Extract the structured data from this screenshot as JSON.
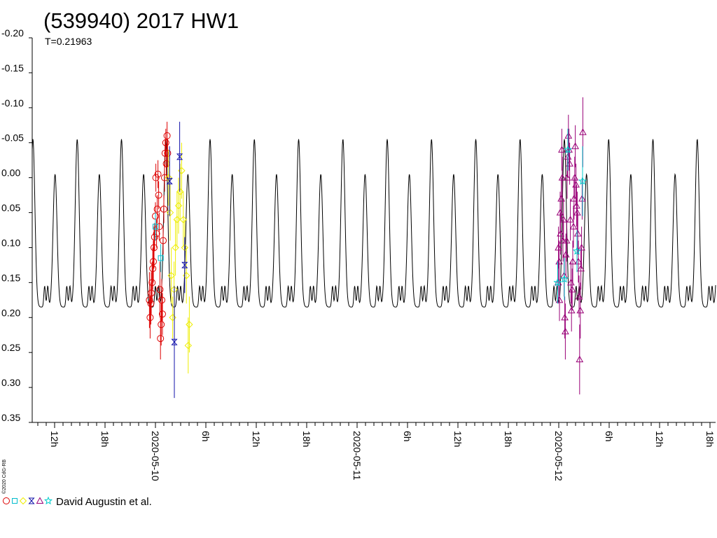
{
  "chart_data": {
    "type": "scatter",
    "title": "(539940) 2017 HW1",
    "subtitle": "T=0.21963",
    "copyright": "©2020 CdG-RB",
    "x_unit": "hours",
    "xlim": [
      "2020-05-09T09:20",
      "2020-05-12T18:40"
    ],
    "ylim": [
      -0.2,
      0.35
    ],
    "y_inverted": true,
    "y_ticks": [
      {
        "value": -0.2,
        "label": "-0.20"
      },
      {
        "value": -0.15,
        "label": "-0.15"
      },
      {
        "value": -0.1,
        "label": "-0.10"
      },
      {
        "value": -0.05,
        "label": "-0.05"
      },
      {
        "value": 0.0,
        "label": "0.00"
      },
      {
        "value": 0.05,
        "label": "0.05"
      },
      {
        "value": 0.1,
        "label": "0.10"
      },
      {
        "value": 0.15,
        "label": "0.15"
      },
      {
        "value": 0.2,
        "label": "0.20"
      },
      {
        "value": 0.25,
        "label": "0.25"
      },
      {
        "value": 0.3,
        "label": "0.30"
      },
      {
        "value": 0.35,
        "label": "0.35"
      }
    ],
    "x_tick_labels": [
      {
        "time": "2020-05-09T12:00",
        "label": "12h"
      },
      {
        "time": "2020-05-09T18:00",
        "label": "18h"
      },
      {
        "time": "2020-05-10T00:00",
        "label": "2020-05-10"
      },
      {
        "time": "2020-05-10T06:00",
        "label": "6h"
      },
      {
        "time": "2020-05-10T12:00",
        "label": "12h"
      },
      {
        "time": "2020-05-10T18:00",
        "label": "18h"
      },
      {
        "time": "2020-05-11T00:00",
        "label": "2020-05-11"
      },
      {
        "time": "2020-05-11T06:00",
        "label": "6h"
      },
      {
        "time": "2020-05-11T12:00",
        "label": "12h"
      },
      {
        "time": "2020-05-11T18:00",
        "label": "18h"
      },
      {
        "time": "2020-05-12T00:00",
        "label": "2020-05-12"
      },
      {
        "time": "2020-05-12T06:00",
        "label": "6h"
      },
      {
        "time": "2020-05-12T12:00",
        "label": "12h"
      },
      {
        "time": "2020-05-12T18:00",
        "label": "18h"
      }
    ],
    "model_curve": {
      "period_hours": 5.271,
      "reference_peak": "2020-05-09T09:25",
      "primary_max": -0.055,
      "secondary_max": -0.005,
      "minimum": 0.185,
      "inflection_level": 0.155,
      "color": "#000000"
    },
    "legend": {
      "symbols": [
        {
          "shape": "circle",
          "color": "#dd0000"
        },
        {
          "shape": "square",
          "color": "#00bbcc"
        },
        {
          "shape": "diamond",
          "color": "#eeee00"
        },
        {
          "shape": "bowtie",
          "color": "#1111aa"
        },
        {
          "shape": "triangle",
          "color": "#990077"
        },
        {
          "shape": "star",
          "color": "#00cccc"
        }
      ],
      "label": "David Augustin et al."
    },
    "series": [
      {
        "shape": "circle",
        "color": "#dd0000",
        "points": [
          [
            "2020-05-09T23:17",
            0.175,
            0.04
          ],
          [
            "2020-05-09T23:22",
            0.2,
            0.03
          ],
          [
            "2020-05-09T23:27",
            0.18,
            0.03
          ],
          [
            "2020-05-09T23:30",
            0.165,
            0.03
          ],
          [
            "2020-05-09T23:36",
            0.15,
            0.03
          ],
          [
            "2020-05-09T23:41",
            0.13,
            0.03
          ],
          [
            "2020-05-09T23:45",
            0.12,
            0.03
          ],
          [
            "2020-05-09T23:50",
            0.1,
            0.03
          ],
          [
            "2020-05-09T23:54",
            0.085,
            0.02
          ],
          [
            "2020-05-10T00:00",
            0.055,
            0.02
          ],
          [
            "2020-05-10T00:03",
            0.0,
            0.02
          ],
          [
            "2020-05-10T00:08",
            0.08,
            0.02
          ],
          [
            "2020-05-10T00:13",
            0.045,
            0.02
          ],
          [
            "2020-05-10T00:18",
            -0.005,
            0.02
          ],
          [
            "2020-05-10T00:23",
            0.025,
            0.02
          ],
          [
            "2020-05-10T00:27",
            0.07,
            0.02
          ],
          [
            "2020-05-10T00:32",
            0.16,
            0.04
          ],
          [
            "2020-05-10T00:36",
            0.23,
            0.03
          ],
          [
            "2020-05-10T00:41",
            0.21,
            0.03
          ],
          [
            "2020-05-10T00:45",
            0.175,
            0.03
          ],
          [
            "2020-05-10T00:50",
            0.195,
            0.03
          ],
          [
            "2020-05-10T00:55",
            0.09,
            0.02
          ],
          [
            "2020-05-10T01:00",
            0.045,
            0.02
          ],
          [
            "2020-05-10T01:05",
            0.0,
            0.02
          ],
          [
            "2020-05-10T01:09",
            -0.035,
            0.02
          ],
          [
            "2020-05-10T01:14",
            -0.05,
            0.02
          ],
          [
            "2020-05-10T01:18",
            -0.02,
            0.02
          ],
          [
            "2020-05-10T01:23",
            -0.06,
            0.02
          ],
          [
            "2020-05-10T01:27",
            -0.035,
            0.02
          ]
        ]
      },
      {
        "shape": "square",
        "color": "#00bbcc",
        "points": [
          [
            "2020-05-10T00:00",
            0.07,
            0.02
          ],
          [
            "2020-05-10T00:38",
            0.115,
            0.02
          ]
        ]
      },
      {
        "shape": "diamond",
        "color": "#eeee00",
        "points": [
          [
            "2020-05-10T01:34",
            0.0,
            0.04
          ],
          [
            "2020-05-10T01:45",
            0.05,
            0.04
          ],
          [
            "2020-05-10T01:53",
            0.14,
            0.04
          ],
          [
            "2020-05-10T02:03",
            0.2,
            0.03
          ],
          [
            "2020-05-10T02:13",
            0.16,
            0.04
          ],
          [
            "2020-05-10T02:23",
            0.1,
            0.04
          ],
          [
            "2020-05-10T02:34",
            0.06,
            0.04
          ],
          [
            "2020-05-10T02:45",
            0.04,
            0.04
          ],
          [
            "2020-05-10T02:56",
            0.02,
            0.04
          ],
          [
            "2020-05-10T03:07",
            -0.01,
            0.04
          ],
          [
            "2020-05-10T03:19",
            0.06,
            0.04
          ],
          [
            "2020-05-10T03:29",
            0.1,
            0.04
          ],
          [
            "2020-05-10T03:41",
            0.14,
            0.04
          ],
          [
            "2020-05-10T03:54",
            0.24,
            0.04
          ],
          [
            "2020-05-10T04:02",
            0.21,
            0.04
          ]
        ]
      },
      {
        "shape": "bowtie",
        "color": "#1111aa",
        "points": [
          [
            "2020-05-10T01:41",
            0.005,
            0.05
          ],
          [
            "2020-05-10T02:15",
            0.235,
            0.08
          ],
          [
            "2020-05-10T02:53",
            -0.03,
            0.05
          ],
          [
            "2020-05-10T03:29",
            0.125,
            0.04
          ]
        ]
      },
      {
        "shape": "triangle",
        "color": "#990077",
        "points": [
          [
            "2020-05-11T23:56",
            0.15,
            0.03
          ],
          [
            "2020-05-11T23:58",
            0.1,
            0.03
          ],
          [
            "2020-05-12T00:03",
            0.12,
            0.03
          ],
          [
            "2020-05-12T00:05",
            0.175,
            0.03
          ],
          [
            "2020-05-12T00:10",
            0.05,
            0.03
          ],
          [
            "2020-05-12T00:13",
            0.08,
            0.03
          ],
          [
            "2020-05-12T00:18",
            0.03,
            0.03
          ],
          [
            "2020-05-12T00:22",
            -0.04,
            0.03
          ],
          [
            "2020-05-12T00:25",
            0.0,
            0.03
          ],
          [
            "2020-05-12T00:30",
            0.09,
            0.03
          ],
          [
            "2020-05-12T00:34",
            0.06,
            0.03
          ],
          [
            "2020-05-12T00:38",
            0.14,
            0.03
          ],
          [
            "2020-05-12T00:43",
            0.2,
            0.03
          ],
          [
            "2020-05-12T00:47",
            0.22,
            0.04
          ],
          [
            "2020-05-12T00:51",
            0.11,
            0.03
          ],
          [
            "2020-05-12T00:56",
            0.09,
            0.03
          ],
          [
            "2020-05-12T01:00",
            0.0,
            0.03
          ],
          [
            "2020-05-12T01:05",
            -0.03,
            0.03
          ],
          [
            "2020-05-12T01:09",
            -0.06,
            0.03
          ],
          [
            "2020-05-12T01:13",
            -0.04,
            0.03
          ],
          [
            "2020-05-12T01:18",
            -0.02,
            0.03
          ],
          [
            "2020-05-12T01:23",
            0.06,
            0.03
          ],
          [
            "2020-05-12T01:27",
            0.15,
            0.03
          ],
          [
            "2020-05-12T01:31",
            0.19,
            0.03
          ],
          [
            "2020-05-12T01:36",
            0.16,
            0.03
          ],
          [
            "2020-05-12T01:40",
            0.12,
            0.03
          ],
          [
            "2020-05-12T01:45",
            0.07,
            0.03
          ],
          [
            "2020-05-12T01:49",
            0.03,
            0.03
          ],
          [
            "2020-05-12T01:54",
            0.0,
            0.03
          ],
          [
            "2020-05-12T01:58",
            -0.045,
            0.03
          ],
          [
            "2020-05-12T02:03",
            0.01,
            0.03
          ],
          [
            "2020-05-12T02:07",
            0.04,
            0.03
          ],
          [
            "2020-05-12T02:12",
            0.05,
            0.03
          ],
          [
            "2020-05-12T02:16",
            0.08,
            0.03
          ],
          [
            "2020-05-12T02:20",
            0.12,
            0.03
          ],
          [
            "2020-05-12T02:25",
            0.17,
            0.03
          ],
          [
            "2020-05-12T02:29",
            0.26,
            0.05
          ],
          [
            "2020-05-12T02:34",
            0.19,
            0.04
          ],
          [
            "2020-05-12T02:38",
            0.13,
            0.03
          ],
          [
            "2020-05-12T02:43",
            0.1,
            0.03
          ],
          [
            "2020-05-12T02:47",
            0.03,
            0.03
          ],
          [
            "2020-05-12T02:52",
            -0.065,
            0.05
          ]
        ]
      },
      {
        "shape": "star",
        "color": "#00cccc",
        "points": [
          [
            "2020-05-11T23:52",
            0.15,
            0.03
          ],
          [
            "2020-05-12T00:40",
            0.145,
            0.03
          ],
          [
            "2020-05-12T01:05",
            -0.04,
            0.03
          ],
          [
            "2020-05-12T02:10",
            0.105,
            0.03
          ],
          [
            "2020-05-12T02:50",
            0.005,
            0.05
          ]
        ]
      }
    ]
  }
}
